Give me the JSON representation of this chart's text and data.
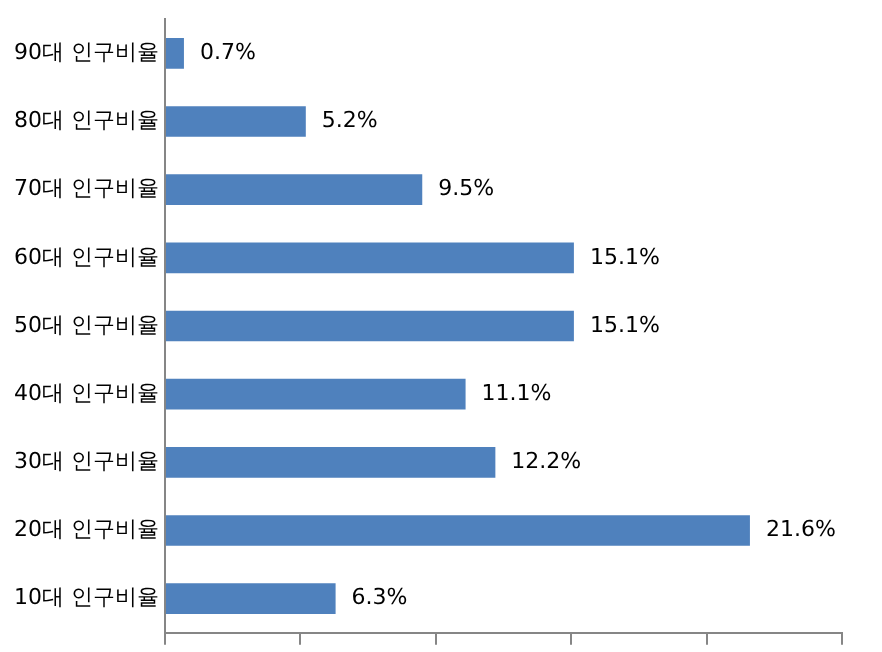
{
  "chart_data": {
    "type": "bar",
    "orientation": "horizontal",
    "categories": [
      "90대 인구비율",
      "80대 인구비율",
      "70대 인구비율",
      "60대 인구비율",
      "50대 인구비율",
      "40대 인구비율",
      "30대 인구비율",
      "20대 인구비율",
      "10대 인구비율"
    ],
    "values": [
      0.7,
      5.2,
      9.5,
      15.1,
      15.1,
      11.1,
      12.2,
      21.6,
      6.3
    ],
    "value_labels": [
      "0.7%",
      "5.2%",
      "9.5%",
      "15.1%",
      "15.1%",
      "11.1%",
      "12.2%",
      "21.6%",
      "6.3%"
    ],
    "color": "#4f81bd",
    "xlim": [
      0,
      25
    ],
    "xticks": [
      {
        "value": 0,
        "label": null
      },
      {
        "value": 5,
        "label": null
      },
      {
        "value": 10,
        "label": null
      },
      {
        "value": 15,
        "label": null
      },
      {
        "value": 20,
        "label": null
      },
      {
        "value": 25,
        "label": null
      }
    ],
    "tick_labels": "y",
    "grid": false,
    "legend": false
  }
}
